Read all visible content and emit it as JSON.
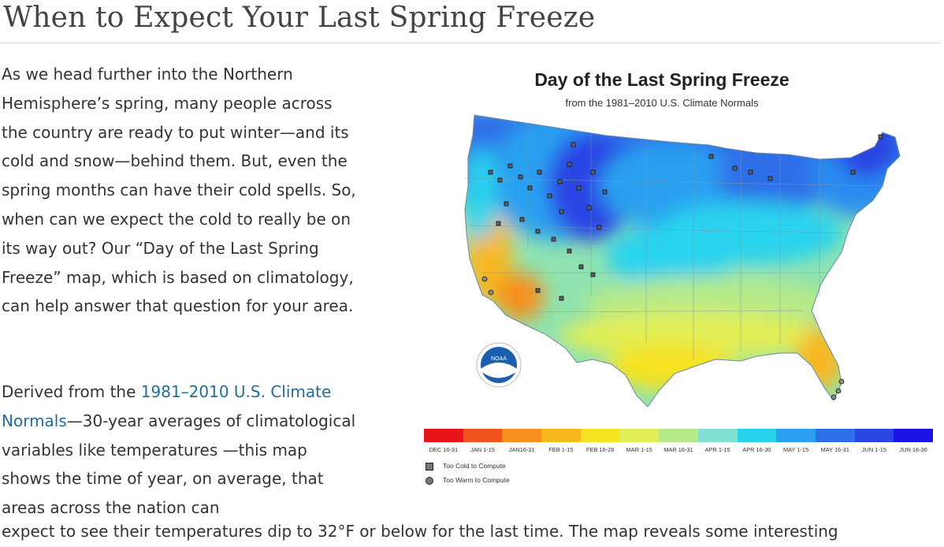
{
  "article": {
    "title": "When to Expect Your Last Spring Freeze",
    "paragraph1": "As we head further into the Northern Hemisphere’s spring, many people across the country are ready to put winter—and its cold and snow—behind them. But, even the spring months can have their cold spells. So, when can we expect the cold to really be on its way out? Our “Day of the Last Spring Freeze” map, which is based on climatology, can help answer that question for your area.",
    "paragraph2_before": "Derived from the ",
    "paragraph2_link": "1981–2010 U.S. Climate Normals",
    "paragraph2_after": "—30-year averages of climatological variables like temperatures —this map shows the time of year, on average, that areas across the nation can",
    "paragraph3": "expect to see their temperatures dip to 32°F or below for the last time. The map reveals some interesting"
  },
  "figure": {
    "title": "Day of the Last Spring Freeze",
    "subtitle": "from the 1981–2010 U.S. Climate Normals",
    "logo_icon": "noaa-logo-icon",
    "logo_text": "NOAA",
    "legend": [
      {
        "label": "DEC 16-31",
        "color": "#e8141a"
      },
      {
        "label": "JAN 1-15",
        "color": "#f2531a"
      },
      {
        "label": "JAN16-31",
        "color": "#f5901e"
      },
      {
        "label": "FEB 1-15",
        "color": "#f8b820"
      },
      {
        "label": "FEB 16-28",
        "color": "#f5e221"
      },
      {
        "label": "MAR 1-15",
        "color": "#e2ee55"
      },
      {
        "label": "MAR 16-31",
        "color": "#b6e988"
      },
      {
        "label": "APR 1-15",
        "color": "#7fe0d2"
      },
      {
        "label": "APR 16-30",
        "color": "#29d3ee"
      },
      {
        "label": "MAY 1-15",
        "color": "#2aa0f0"
      },
      {
        "label": "MAY 16-31",
        "color": "#2e6ee8"
      },
      {
        "label": "JUN 1-15",
        "color": "#2b44e4"
      },
      {
        "label": "JUN 16-30",
        "color": "#1a14e6"
      }
    ],
    "key_too_cold": "Too Cold to Compute",
    "key_too_warm": "Too Warm to Compute"
  }
}
